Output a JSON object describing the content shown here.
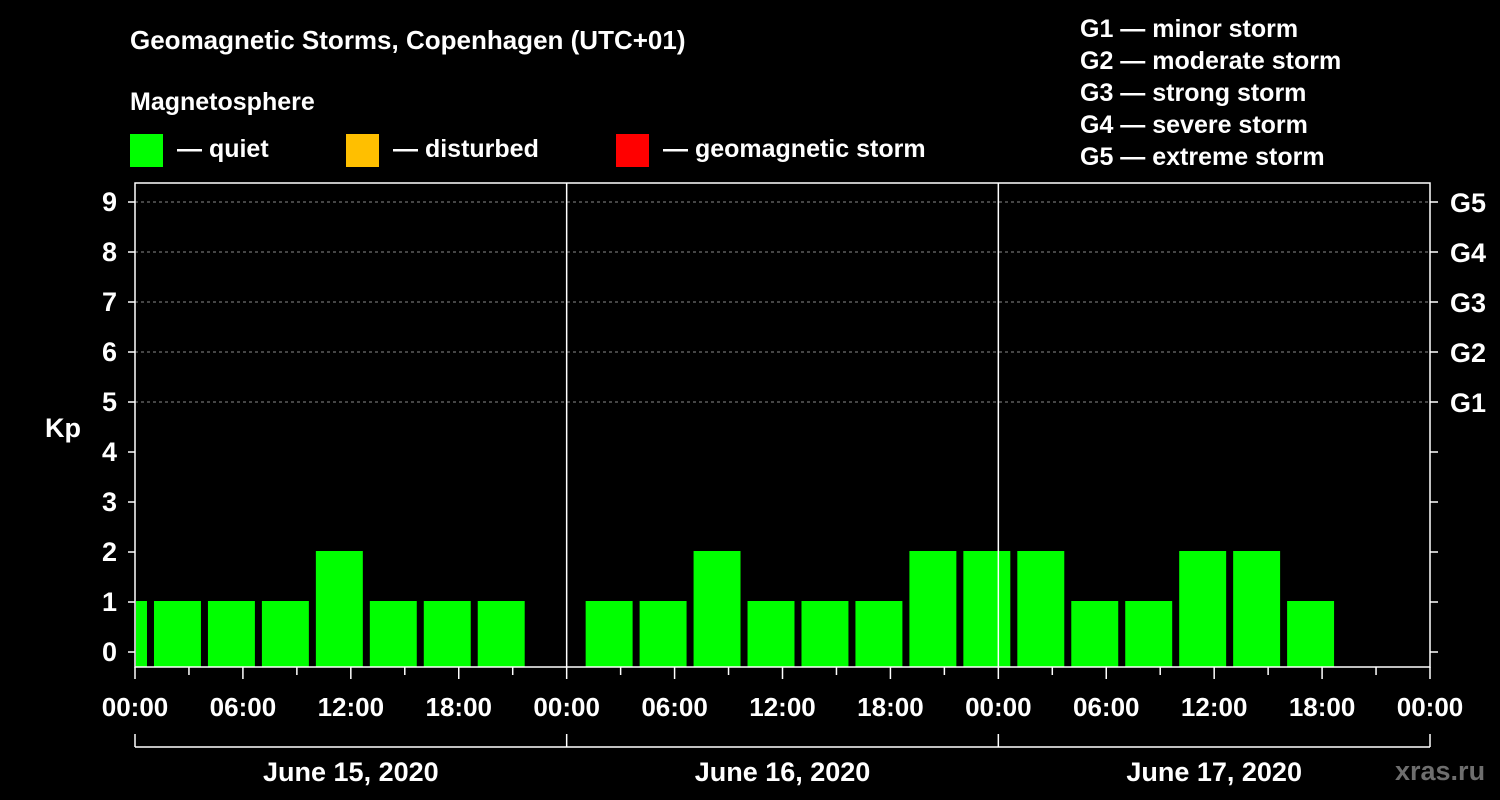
{
  "title": "Geomagnetic Storms, Copenhagen (UTC+01)",
  "legend": {
    "heading": "Magnetosphere",
    "items": [
      {
        "label": "— quiet",
        "color": "#00ff00"
      },
      {
        "label": "— disturbed",
        "color": "#ffbf00"
      },
      {
        "label": "— geomagnetic storm",
        "color": "#ff0000"
      }
    ]
  },
  "scale": [
    "G1 — minor storm",
    "G2 — moderate storm",
    "G3 — strong storm",
    "G4 — severe storm",
    "G5 — extreme storm"
  ],
  "watermark": "xras.ru",
  "colors": {
    "quiet": "#00ff00",
    "disturbed": "#ffbf00",
    "storm": "#ff0000",
    "background": "#000000",
    "foreground": "#ffffff"
  },
  "chart_data": {
    "type": "bar",
    "ylabel": "Kp",
    "ylim": [
      0,
      9
    ],
    "y_ticks": [
      "0",
      "1",
      "2",
      "3",
      "4",
      "5",
      "6",
      "7",
      "8",
      "9"
    ],
    "gridlines_at": [
      5,
      6,
      7,
      8,
      9
    ],
    "right_axis_labels": [
      {
        "kp": 5,
        "label": "G1"
      },
      {
        "kp": 6,
        "label": "G2"
      },
      {
        "kp": 7,
        "label": "G3"
      },
      {
        "kp": 8,
        "label": "G4"
      },
      {
        "kp": 9,
        "label": "G5"
      }
    ],
    "x_range_hours": [
      0,
      72
    ],
    "x_tick_labels": [
      "00:00",
      "06:00",
      "12:00",
      "18:00",
      "00:00",
      "06:00",
      "12:00",
      "18:00",
      "00:00",
      "06:00",
      "12:00",
      "18:00",
      "00:00"
    ],
    "days": [
      "June 15, 2020",
      "June 16, 2020",
      "June 17, 2020"
    ],
    "bars": [
      {
        "start_hour": 0,
        "end_hour": 1,
        "kp": 1,
        "status": "quiet"
      },
      {
        "start_hour": 1,
        "end_hour": 4,
        "kp": 1,
        "status": "quiet"
      },
      {
        "start_hour": 4,
        "end_hour": 7,
        "kp": 1,
        "status": "quiet"
      },
      {
        "start_hour": 7,
        "end_hour": 10,
        "kp": 1,
        "status": "quiet"
      },
      {
        "start_hour": 10,
        "end_hour": 13,
        "kp": 2,
        "status": "quiet"
      },
      {
        "start_hour": 13,
        "end_hour": 16,
        "kp": 1,
        "status": "quiet"
      },
      {
        "start_hour": 16,
        "end_hour": 19,
        "kp": 1,
        "status": "quiet"
      },
      {
        "start_hour": 19,
        "end_hour": 22,
        "kp": 1,
        "status": "quiet"
      },
      {
        "start_hour": 25,
        "end_hour": 28,
        "kp": 1,
        "status": "quiet"
      },
      {
        "start_hour": 28,
        "end_hour": 31,
        "kp": 1,
        "status": "quiet"
      },
      {
        "start_hour": 31,
        "end_hour": 34,
        "kp": 2,
        "status": "quiet"
      },
      {
        "start_hour": 34,
        "end_hour": 37,
        "kp": 1,
        "status": "quiet"
      },
      {
        "start_hour": 37,
        "end_hour": 40,
        "kp": 1,
        "status": "quiet"
      },
      {
        "start_hour": 40,
        "end_hour": 43,
        "kp": 1,
        "status": "quiet"
      },
      {
        "start_hour": 43,
        "end_hour": 46,
        "kp": 2,
        "status": "quiet"
      },
      {
        "start_hour": 46,
        "end_hour": 49,
        "kp": 2,
        "status": "quiet"
      },
      {
        "start_hour": 49,
        "end_hour": 52,
        "kp": 2,
        "status": "quiet"
      },
      {
        "start_hour": 52,
        "end_hour": 55,
        "kp": 1,
        "status": "quiet"
      },
      {
        "start_hour": 55,
        "end_hour": 58,
        "kp": 1,
        "status": "quiet"
      },
      {
        "start_hour": 58,
        "end_hour": 61,
        "kp": 2,
        "status": "quiet"
      },
      {
        "start_hour": 61,
        "end_hour": 64,
        "kp": 2,
        "status": "quiet"
      },
      {
        "start_hour": 64,
        "end_hour": 67,
        "kp": 1,
        "status": "quiet"
      }
    ]
  }
}
